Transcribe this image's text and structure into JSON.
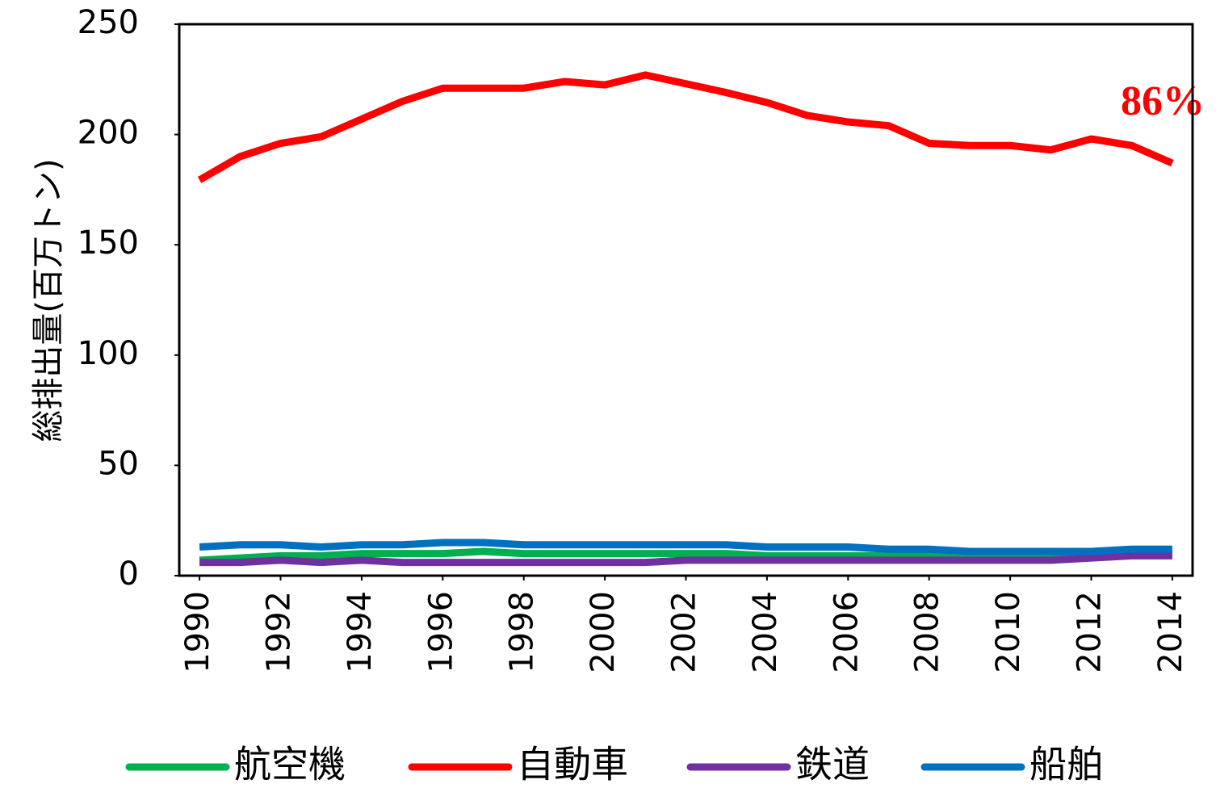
{
  "chart_data": {
    "type": "line",
    "y_label": "総排出量(百万トン)",
    "annotation": "86%",
    "x": [
      1990,
      1991,
      1992,
      1993,
      1994,
      1995,
      1996,
      1997,
      1998,
      1999,
      2000,
      2001,
      2002,
      2003,
      2004,
      2005,
      2006,
      2007,
      2008,
      2009,
      2010,
      2011,
      2012,
      2013,
      2014
    ],
    "xlim": [
      1989.5,
      2014.5
    ],
    "xticks": [
      1990,
      1992,
      1994,
      1996,
      1998,
      2000,
      2002,
      2004,
      2006,
      2008,
      2010,
      2012,
      2014
    ],
    "ylim": [
      0,
      250
    ],
    "yticks": [
      0,
      50,
      100,
      150,
      200,
      250
    ],
    "series": [
      {
        "name": "航空機",
        "color": "#00b050",
        "values": [
          7,
          8,
          9,
          9,
          10,
          10,
          10,
          11,
          10,
          10,
          10,
          10,
          10,
          10,
          9,
          9,
          9,
          9,
          9,
          9,
          9,
          9,
          9,
          10,
          10
        ]
      },
      {
        "name": "自動車",
        "color": "#ff0000",
        "values": [
          179.4,
          190,
          196,
          199,
          207,
          215,
          221,
          221,
          221,
          224,
          222.5,
          227,
          223,
          219,
          214.5,
          208.6,
          205.7,
          204,
          196,
          195,
          195,
          193,
          198,
          195,
          187
        ]
      },
      {
        "name": "鉄道",
        "color": "#7030a0",
        "values": [
          6,
          6,
          7,
          6,
          7,
          6,
          6,
          6,
          6,
          6,
          6,
          6,
          7,
          7,
          7,
          7,
          7,
          7,
          7,
          7,
          7,
          7,
          8,
          9,
          9
        ]
      },
      {
        "name": "船舶",
        "color": "#0070c0",
        "values": [
          13,
          14,
          14,
          13,
          14,
          14,
          15,
          15,
          14,
          14,
          14,
          14,
          14,
          14,
          13,
          13,
          13,
          12,
          12,
          11,
          11,
          11,
          11,
          12,
          12
        ]
      }
    ]
  }
}
